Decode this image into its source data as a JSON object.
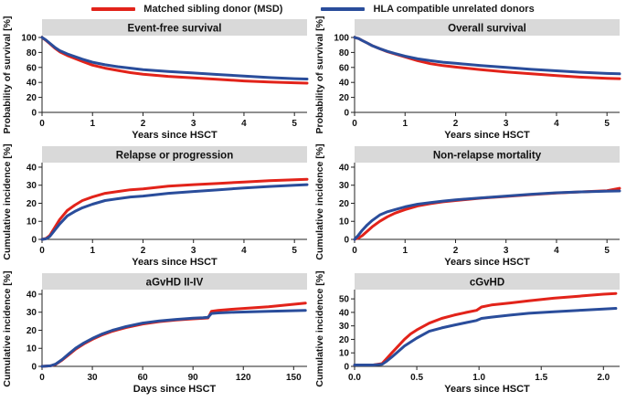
{
  "style": {
    "msd_color": "#e2231a",
    "ud_color": "#2a4d9b",
    "strip_color": "#d9d9d9",
    "axis_color": "#222222",
    "text_color": "#111111"
  },
  "legend": {
    "items": [
      {
        "id": "msd",
        "label": "Matched sibling donor (MSD)",
        "color": "#e2231a"
      },
      {
        "id": "ud",
        "label": "HLA compatible unrelated donors",
        "color": "#2a4d9b"
      }
    ]
  },
  "chart_data": [
    {
      "type": "line",
      "title": "Event-free survival",
      "xlabel": "Years since HSCT",
      "ylabel": "Probability of survival [%]",
      "xlim": [
        0,
        5.25
      ],
      "ylim": [
        0,
        100
      ],
      "xtick_vals": [
        0,
        1,
        2,
        3,
        4,
        5
      ],
      "xtick_labels": [
        "0",
        "1",
        "2",
        "3",
        "4",
        "5"
      ],
      "ytick_vals": [
        0,
        20,
        40,
        60,
        80,
        100
      ],
      "ytick_labels": [
        "0",
        "20",
        "40",
        "60",
        "80",
        "100"
      ],
      "grid": false,
      "legend_position": "top",
      "series": [
        {
          "id": "msd",
          "name": "Matched sibling donor (MSD)",
          "color": "#e2231a",
          "x": [
            0,
            0.08,
            0.15,
            0.25,
            0.35,
            0.5,
            0.65,
            0.8,
            1.0,
            1.25,
            1.5,
            1.75,
            2.0,
            2.5,
            3.0,
            3.5,
            4.0,
            4.5,
            5.0,
            5.25
          ],
          "y": [
            100,
            96,
            92,
            86,
            81,
            76,
            72,
            68,
            63,
            59,
            56,
            53,
            51,
            48,
            46,
            44,
            42,
            40.5,
            39.5,
            39
          ]
        },
        {
          "id": "ud",
          "name": "HLA compatible unrelated donors",
          "color": "#2a4d9b",
          "x": [
            0,
            0.08,
            0.15,
            0.25,
            0.35,
            0.5,
            0.65,
            0.8,
            1.0,
            1.25,
            1.5,
            1.75,
            2.0,
            2.5,
            3.0,
            3.5,
            4.0,
            4.5,
            5.0,
            5.25
          ],
          "y": [
            100,
            96.5,
            92.5,
            87,
            82.5,
            78,
            74.5,
            71,
            67,
            63.5,
            61,
            59,
            57,
            54.5,
            52.5,
            50.5,
            48.5,
            46.5,
            45,
            44.5
          ]
        }
      ]
    },
    {
      "type": "line",
      "title": "Overall survival",
      "xlabel": "Years since HSCT",
      "ylabel": "Probability of survival [%]",
      "xlim": [
        0,
        5.25
      ],
      "ylim": [
        0,
        100
      ],
      "xtick_vals": [
        0,
        1,
        2,
        3,
        4,
        5
      ],
      "xtick_labels": [
        "0",
        "1",
        "2",
        "3",
        "4",
        "5"
      ],
      "ytick_vals": [
        0,
        20,
        40,
        60,
        80,
        100
      ],
      "ytick_labels": [
        "0",
        "20",
        "40",
        "60",
        "80",
        "100"
      ],
      "grid": false,
      "legend_position": "top",
      "series": [
        {
          "id": "msd",
          "name": "Matched sibling donor (MSD)",
          "color": "#e2231a",
          "x": [
            0,
            0.08,
            0.15,
            0.25,
            0.35,
            0.5,
            0.65,
            0.8,
            1.0,
            1.25,
            1.5,
            1.75,
            2.0,
            2.5,
            3.0,
            3.5,
            4.0,
            4.5,
            5.0,
            5.25
          ],
          "y": [
            100,
            98.5,
            96,
            92.5,
            89,
            85,
            81,
            78,
            74,
            69,
            65,
            62.5,
            60.5,
            57,
            54,
            51.5,
            49,
            47,
            45.5,
            45
          ]
        },
        {
          "id": "ud",
          "name": "HLA compatible unrelated donors",
          "color": "#2a4d9b",
          "x": [
            0,
            0.08,
            0.15,
            0.25,
            0.35,
            0.5,
            0.65,
            0.8,
            1.0,
            1.25,
            1.5,
            1.75,
            2.0,
            2.5,
            3.0,
            3.5,
            4.0,
            4.5,
            5.0,
            5.25
          ],
          "y": [
            100,
            98.5,
            96,
            92.5,
            89,
            85,
            81.5,
            78.5,
            75,
            71.5,
            69,
            67,
            65.5,
            62.5,
            60,
            57.5,
            55.5,
            53.5,
            52,
            51.5
          ]
        }
      ]
    },
    {
      "type": "line",
      "title": "Relapse or progression",
      "xlabel": "Years since HSCT",
      "ylabel": "Cumulative incidence [%]",
      "xlim": [
        0,
        5.25
      ],
      "ylim": [
        0,
        41.5
      ],
      "xtick_vals": [
        0,
        1,
        2,
        3,
        4,
        5
      ],
      "xtick_labels": [
        "0",
        "1",
        "2",
        "3",
        "4",
        "5"
      ],
      "ytick_vals": [
        0,
        10,
        20,
        30,
        40
      ],
      "ytick_labels": [
        "0",
        "10",
        "20",
        "30",
        "40"
      ],
      "grid": false,
      "legend_position": "top",
      "series": [
        {
          "id": "msd",
          "name": "Matched sibling donor (MSD)",
          "color": "#e2231a",
          "x": [
            0,
            0.08,
            0.15,
            0.25,
            0.35,
            0.5,
            0.65,
            0.8,
            1.0,
            1.25,
            1.5,
            1.75,
            2.0,
            2.5,
            3.0,
            3.5,
            4.0,
            4.5,
            5.0,
            5.25
          ],
          "y": [
            0,
            0.5,
            2,
            6.5,
            11,
            16,
            19,
            21.5,
            23.5,
            25.5,
            26.5,
            27.5,
            28,
            29.5,
            30.3,
            31,
            31.8,
            32.5,
            33,
            33.3
          ]
        },
        {
          "id": "ud",
          "name": "HLA compatible unrelated donors",
          "color": "#2a4d9b",
          "x": [
            0,
            0.08,
            0.15,
            0.25,
            0.35,
            0.5,
            0.65,
            0.8,
            1.0,
            1.25,
            1.5,
            1.75,
            2.0,
            2.5,
            3.0,
            3.5,
            4.0,
            4.5,
            5.0,
            5.25
          ],
          "y": [
            0,
            0.3,
            1.5,
            5,
            8.5,
            13,
            15.5,
            17.5,
            19.5,
            21.5,
            22.5,
            23.5,
            24,
            25.5,
            26.5,
            27.5,
            28.5,
            29.3,
            30,
            30.3
          ]
        }
      ]
    },
    {
      "type": "line",
      "title": "Non-relapse mortality",
      "xlabel": "Years since HSCT",
      "ylabel": "Cumulative incidence [%]",
      "xlim": [
        0,
        5.25
      ],
      "ylim": [
        0,
        41.5
      ],
      "xtick_vals": [
        0,
        1,
        2,
        3,
        4,
        5
      ],
      "xtick_labels": [
        "0",
        "1",
        "2",
        "3",
        "4",
        "5"
      ],
      "ytick_vals": [
        0,
        10,
        20,
        30,
        40
      ],
      "ytick_labels": [
        "0",
        "10",
        "20",
        "30",
        "40"
      ],
      "grid": false,
      "legend_position": "top",
      "series": [
        {
          "id": "msd",
          "name": "Matched sibling donor (MSD)",
          "color": "#e2231a",
          "x": [
            0,
            0.08,
            0.15,
            0.25,
            0.35,
            0.5,
            0.65,
            0.8,
            1.0,
            1.25,
            1.5,
            1.75,
            2.0,
            2.5,
            3.0,
            3.5,
            4.0,
            4.5,
            5.0,
            5.25
          ],
          "y": [
            0,
            0.8,
            2,
            4.5,
            7,
            10,
            12.5,
            14.5,
            16.5,
            18.5,
            19.8,
            20.8,
            21.5,
            22.8,
            23.8,
            24.8,
            25.7,
            26.3,
            27,
            28.3
          ]
        },
        {
          "id": "ud",
          "name": "HLA compatible unrelated donors",
          "color": "#2a4d9b",
          "x": [
            0,
            0.08,
            0.15,
            0.25,
            0.35,
            0.5,
            0.65,
            0.8,
            1.0,
            1.25,
            1.5,
            1.75,
            2.0,
            2.5,
            3.0,
            3.5,
            4.0,
            4.5,
            5.0,
            5.25
          ],
          "y": [
            0,
            2.5,
            5,
            8,
            10.5,
            13.5,
            15.3,
            16.5,
            18,
            19.5,
            20.4,
            21.2,
            21.9,
            23,
            24,
            25,
            25.8,
            26.3,
            26.7,
            26.8
          ]
        }
      ]
    },
    {
      "type": "line",
      "title": "aGvHD II-IV",
      "xlabel": "Days since HSCT",
      "ylabel": "Cumulative incidence [%]",
      "xlim": [
        0,
        158
      ],
      "ylim": [
        0,
        41.5
      ],
      "xtick_vals": [
        0,
        30,
        60,
        90,
        120,
        150
      ],
      "xtick_labels": [
        "0",
        "30",
        "60",
        "90",
        "120",
        "150"
      ],
      "ytick_vals": [
        0,
        10,
        20,
        30,
        40
      ],
      "ytick_labels": [
        "0",
        "10",
        "20",
        "30",
        "40"
      ],
      "grid": false,
      "legend_position": "top",
      "series": [
        {
          "id": "msd",
          "name": "Matched sibling donor (MSD)",
          "color": "#e2231a",
          "x": [
            0,
            5,
            8,
            12,
            16,
            20,
            25,
            30,
            36,
            42,
            50,
            60,
            70,
            80,
            90,
            96,
            99,
            101,
            105,
            115,
            135,
            157
          ],
          "y": [
            0,
            0.3,
            1,
            3.5,
            6.5,
            9.5,
            12.5,
            15,
            17.5,
            19.5,
            21.5,
            23.5,
            24.8,
            25.7,
            26.3,
            26.6,
            26.8,
            30.5,
            31,
            31.8,
            33,
            35
          ]
        },
        {
          "id": "ud",
          "name": "HLA compatible unrelated donors",
          "color": "#2a4d9b",
          "x": [
            0,
            5,
            8,
            12,
            16,
            20,
            25,
            30,
            36,
            42,
            50,
            60,
            70,
            80,
            90,
            96,
            99,
            101,
            105,
            115,
            135,
            157
          ],
          "y": [
            0,
            0.3,
            1.2,
            3.8,
            7,
            10,
            13,
            15.5,
            18,
            20,
            22,
            24,
            25.2,
            26,
            26.7,
            27,
            27.2,
            29.3,
            29.6,
            30,
            30.5,
            31
          ]
        }
      ]
    },
    {
      "type": "line",
      "title": "cGvHD",
      "xlabel": "Years since HSCT",
      "ylabel": "Cumulative incidence [%]",
      "xlim": [
        0,
        2.13
      ],
      "ylim": [
        0,
        55.5
      ],
      "xtick_vals": [
        0,
        0.5,
        1,
        1.5,
        2
      ],
      "xtick_labels": [
        "0.0",
        "0.5",
        "1.0",
        "1.5",
        "2.0"
      ],
      "ytick_vals": [
        0,
        10,
        20,
        30,
        40,
        50
      ],
      "ytick_labels": [
        "0",
        "10",
        "20",
        "30",
        "40",
        "50"
      ],
      "grid": false,
      "legend_position": "top",
      "series": [
        {
          "id": "msd",
          "name": "Matched sibling donor (MSD)",
          "color": "#e2231a",
          "x": [
            0,
            0.15,
            0.22,
            0.26,
            0.3,
            0.35,
            0.4,
            0.45,
            0.5,
            0.6,
            0.7,
            0.8,
            0.9,
            0.98,
            1.02,
            1.1,
            1.25,
            1.4,
            1.6,
            1.8,
            2.0,
            2.1
          ],
          "y": [
            1,
            1,
            2,
            6,
            10,
            15,
            20,
            24,
            27,
            32,
            35.5,
            38,
            40,
            41.5,
            44,
            45.5,
            47,
            48.5,
            50.5,
            52,
            53.5,
            54
          ]
        },
        {
          "id": "ud",
          "name": "HLA compatible unrelated donors",
          "color": "#2a4d9b",
          "x": [
            0,
            0.15,
            0.22,
            0.26,
            0.3,
            0.35,
            0.4,
            0.45,
            0.5,
            0.6,
            0.7,
            0.8,
            0.9,
            0.98,
            1.02,
            1.1,
            1.25,
            1.4,
            1.6,
            1.8,
            2.0,
            2.1
          ],
          "y": [
            1,
            1,
            1.5,
            4,
            7,
            11,
            15,
            18,
            21,
            26,
            28.5,
            30.5,
            32.5,
            34,
            35.5,
            36.5,
            38,
            39.3,
            40.5,
            41.5,
            42.5,
            43
          ]
        }
      ]
    }
  ]
}
